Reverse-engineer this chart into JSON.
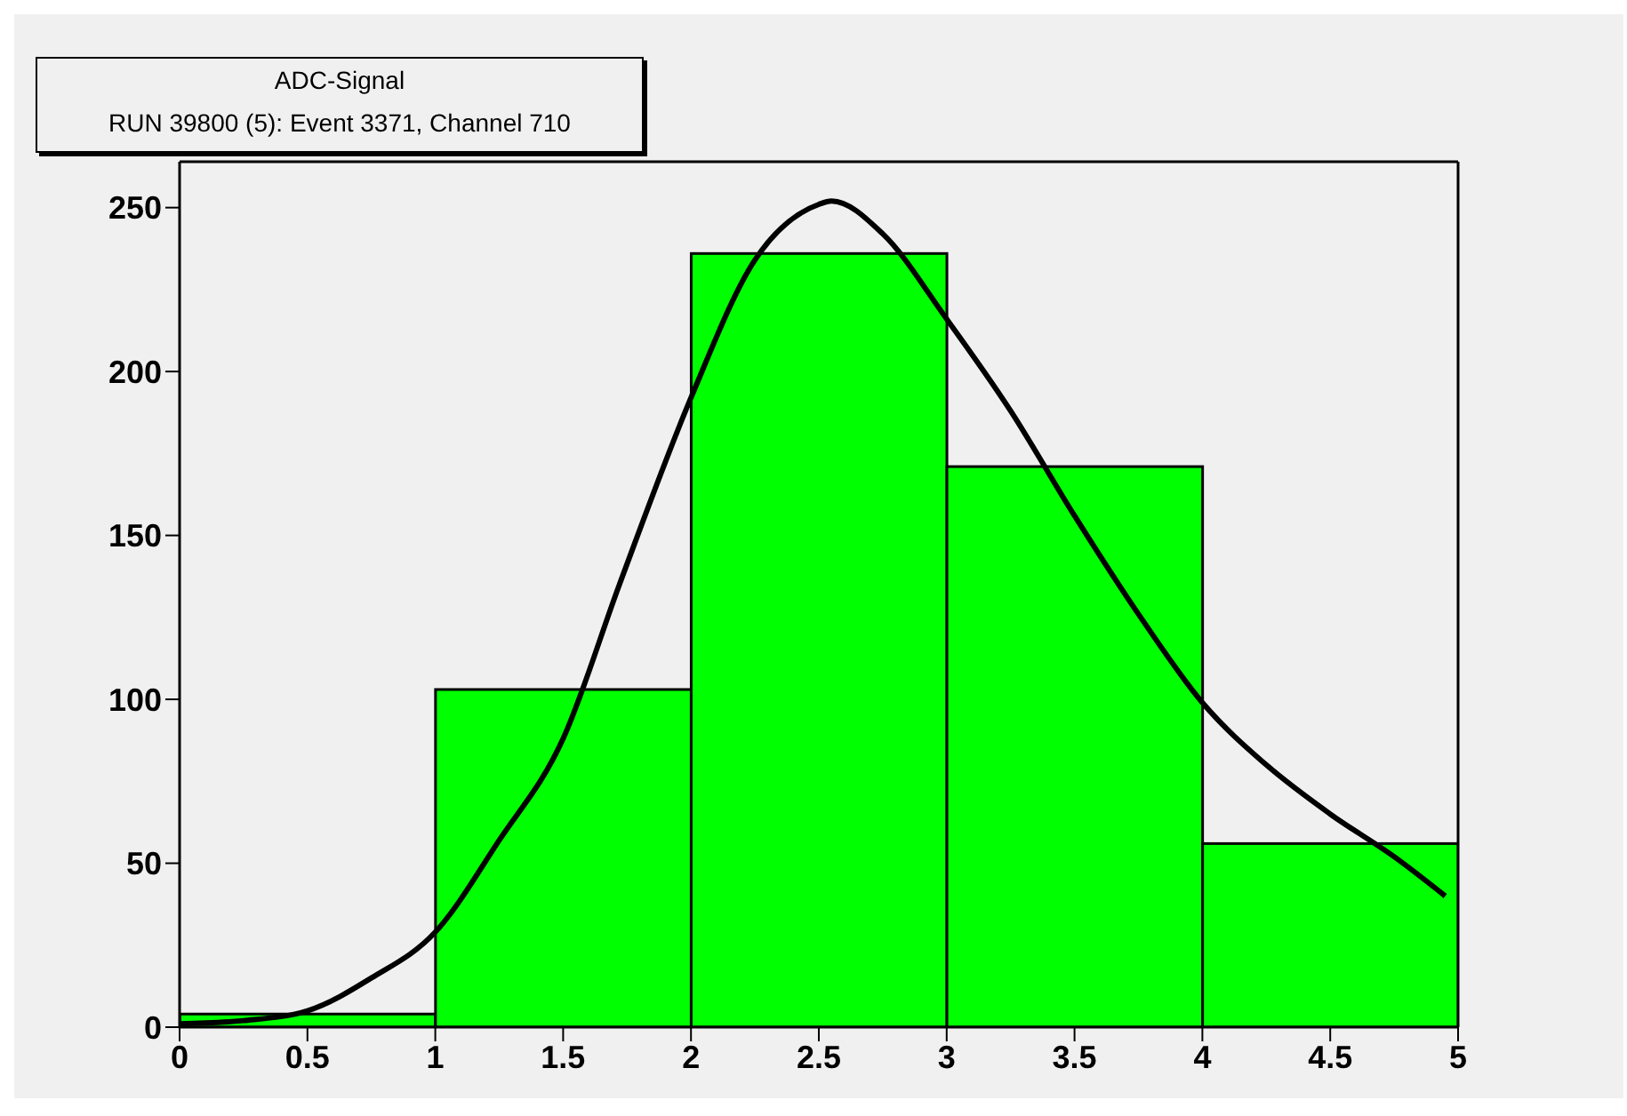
{
  "chart_data": {
    "type": "histogram",
    "title": "ADC-Signal",
    "subtitle": "RUN 39800 (5): Event 3371, Channel 710",
    "bins": [
      0,
      1,
      2,
      3,
      4,
      5
    ],
    "xlim": [
      0,
      5
    ],
    "ylim": [
      0,
      264
    ],
    "xticks": [
      0,
      0.5,
      1,
      1.5,
      2,
      2.5,
      3,
      3.5,
      4,
      4.5,
      5
    ],
    "yticks": [
      0,
      50,
      100,
      150,
      200,
      250
    ],
    "series": [
      {
        "color": "#00ff00",
        "values": [
          4,
          103,
          236,
          171,
          56
        ]
      },
      {
        "type": "line",
        "color": "#000000",
        "x": [
          0,
          0.25,
          0.5,
          0.75,
          1,
          1.25,
          1.5,
          1.72,
          2,
          2.25,
          2.5,
          2.55,
          2.75,
          3,
          3.25,
          3.5,
          3.75,
          4,
          4.25,
          4.5,
          4.75,
          4.95
        ],
        "values": [
          1,
          2,
          5,
          15,
          29,
          57,
          88,
          135,
          192,
          234,
          251,
          252,
          242,
          216,
          188,
          156,
          126,
          99,
          80,
          65,
          52,
          40
        ]
      }
    ]
  }
}
